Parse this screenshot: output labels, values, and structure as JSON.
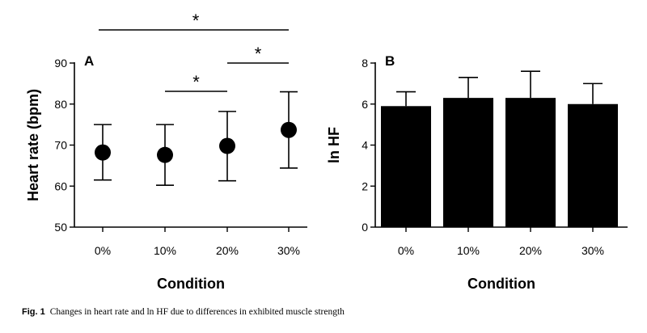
{
  "caption": {
    "label": "Fig. 1",
    "text": "Changes in heart rate and ln HF due to differences in exhibited muscle strength"
  },
  "chart_data": [
    {
      "type": "scatter",
      "panel_label": "A",
      "xlabel": "Condition",
      "ylabel": "Heart rate (bpm)",
      "categories": [
        "0%",
        "10%",
        "20%",
        "30%"
      ],
      "ylim": [
        50,
        90
      ],
      "yticks": [
        50,
        60,
        70,
        80,
        90
      ],
      "series": [
        {
          "values": [
            68.2,
            67.6,
            69.8,
            73.7
          ],
          "error_low": [
            61.5,
            60.2,
            61.3,
            64.4
          ],
          "error_high": [
            75.0,
            75.0,
            78.2,
            83.0
          ]
        }
      ],
      "significance": [
        {
          "from": "10%",
          "to": "20%",
          "marker": "*"
        },
        {
          "from": "20%",
          "to": "30%",
          "marker": "*"
        },
        {
          "from": "0%",
          "to": "30%",
          "marker": "*"
        }
      ],
      "grid": false
    },
    {
      "type": "bar",
      "panel_label": "B",
      "xlabel": "Condition",
      "ylabel": "ln HF",
      "categories": [
        "0%",
        "10%",
        "20%",
        "30%"
      ],
      "ylim": [
        0,
        8
      ],
      "yticks": [
        0,
        2,
        4,
        6,
        8
      ],
      "series": [
        {
          "values": [
            5.9,
            6.3,
            6.3,
            6.0
          ],
          "error_high": [
            6.6,
            7.3,
            7.6,
            7.0
          ]
        }
      ],
      "grid": false
    }
  ]
}
